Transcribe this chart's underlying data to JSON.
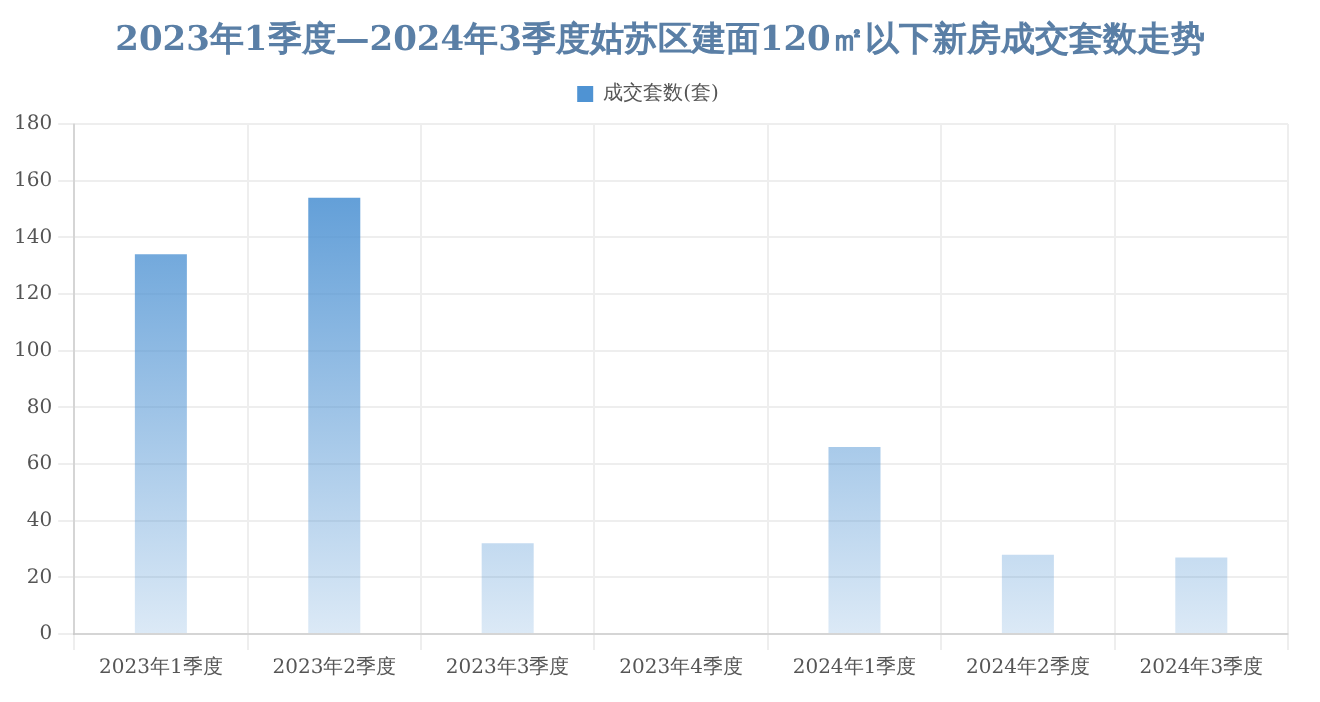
{
  "chart_data": {
    "type": "bar",
    "title": "2023年1季度—2024年3季度姑苏区建面120㎡以下新房成交套数走势",
    "categories": [
      "2023年1季度",
      "2023年2季度",
      "2023年3季度",
      "2023年4季度",
      "2024年1季度",
      "2024年2季度",
      "2024年3季度"
    ],
    "series": [
      {
        "name": "成交套数(套)",
        "color": "#4f93d3",
        "values": [
          134,
          154,
          32,
          null,
          66,
          28,
          27
        ]
      }
    ],
    "ylim": [
      0,
      180
    ],
    "yticks": [
      0,
      20,
      40,
      60,
      80,
      100,
      120,
      140,
      160,
      180
    ],
    "grid": true,
    "legend": "top"
  }
}
